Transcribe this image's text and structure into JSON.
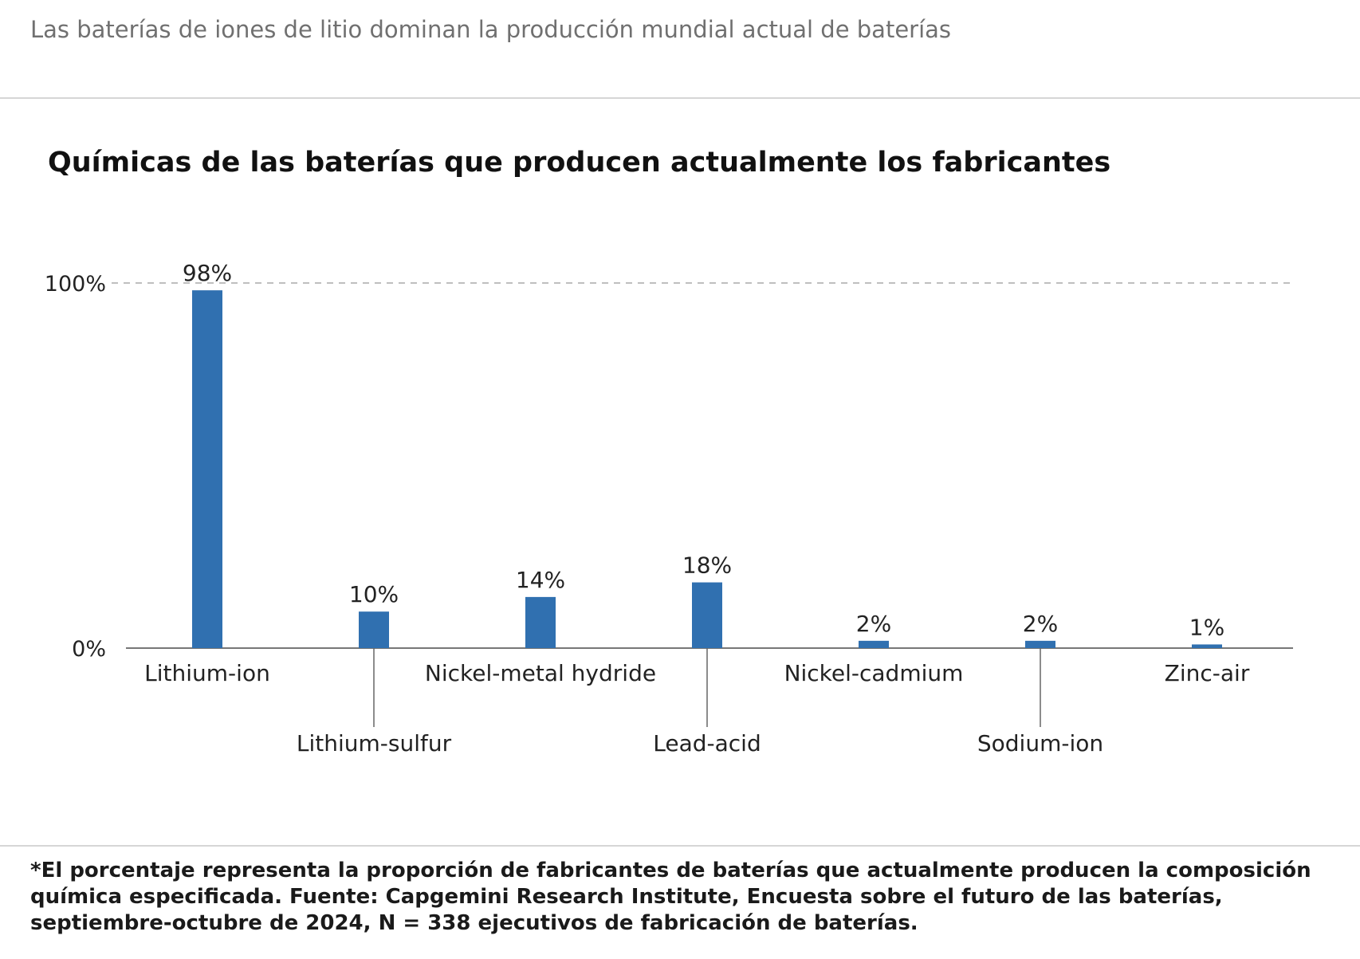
{
  "header": {
    "text": "Las baterías de iones de litio dominan la producción mundial actual de baterías"
  },
  "chart_data": {
    "type": "bar",
    "title": "Químicas de las baterías que producen actualmente los fabricantes",
    "xlabel": "",
    "ylabel": "",
    "categories": [
      "Lithium-ion",
      "Lithium-sulfur",
      "Nickel-metal hydride",
      "Lead-acid",
      "Nickel-cadmium",
      "Sodium-ion",
      "Zinc-air"
    ],
    "values": [
      98,
      10,
      14,
      18,
      2,
      2,
      1
    ],
    "value_labels": [
      "98%",
      "10%",
      "14%",
      "18%",
      "2%",
      "2%",
      "1%"
    ],
    "ylim": [
      0,
      100
    ],
    "y_ticks": [
      {
        "value": 0,
        "label": "0%"
      },
      {
        "value": 100,
        "label": "100%"
      }
    ],
    "gridline_at": 100,
    "bar_color": "#3070b0",
    "axis_color": "#777777",
    "label_alternating": true
  },
  "footer": {
    "note": "*El porcentaje representa la proporción de fabricantes de baterías que actualmente producen la composición química especificada. Fuente: Capgemini Research Institute, Encuesta sobre el futuro de las baterías, septiembre-octubre de 2024, N = 338 ejecutivos de fabricación de baterías."
  }
}
